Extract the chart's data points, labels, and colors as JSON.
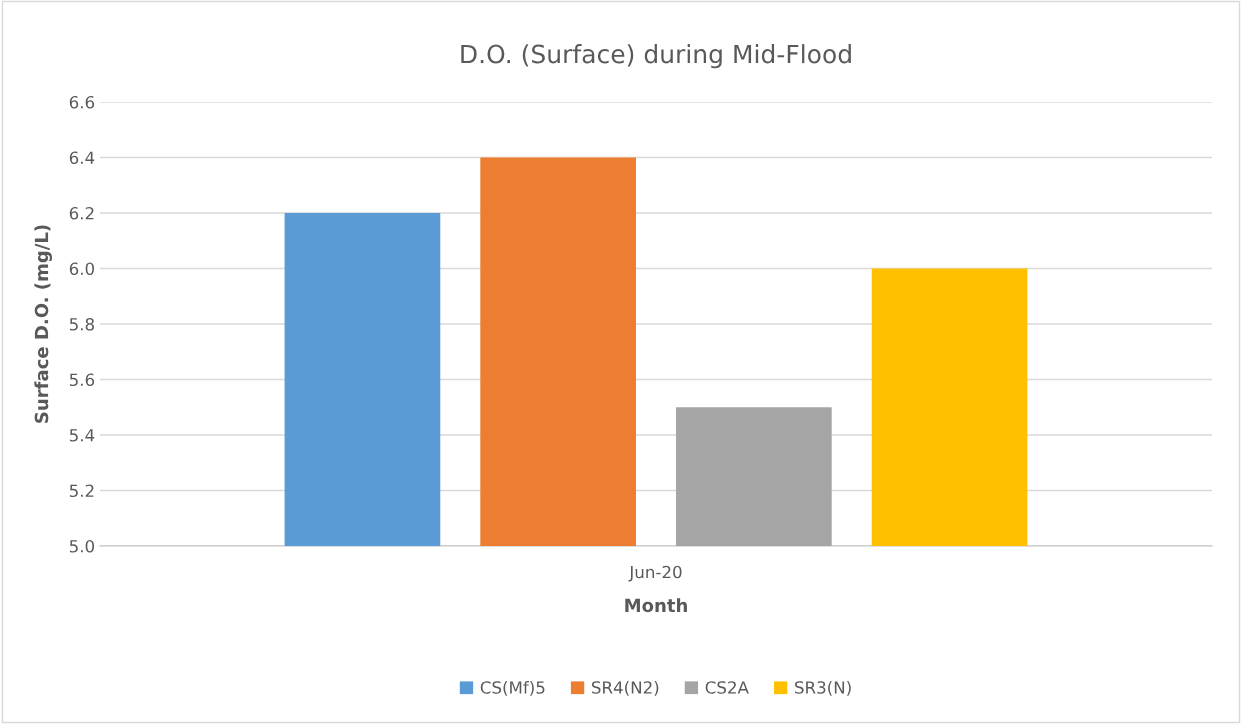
{
  "chart_data": {
    "type": "bar",
    "title": "D.O. (Surface) during Mid-Flood",
    "xlabel": "Month",
    "ylabel": "Surface D.O. (mg/L)",
    "categories": [
      "Jun-20"
    ],
    "series": [
      {
        "name": "CS(Mf)5",
        "color": "#5b9bd5",
        "values": [
          6.2
        ]
      },
      {
        "name": "SR4(N2)",
        "color": "#ed7d31",
        "values": [
          6.4
        ]
      },
      {
        "name": "CS2A",
        "color": "#a5a5a5",
        "values": [
          5.5
        ]
      },
      {
        "name": "SR3(N)",
        "color": "#ffc000",
        "values": [
          6.0
        ]
      }
    ],
    "ylim": [
      5.0,
      6.6
    ],
    "yticks": [
      {
        "value": 5.0,
        "label": "5.0"
      },
      {
        "value": 5.2,
        "label": "5.2"
      },
      {
        "value": 5.4,
        "label": "5.4"
      },
      {
        "value": 5.6,
        "label": "5.6"
      },
      {
        "value": 5.8,
        "label": "5.8"
      },
      {
        "value": 6.0,
        "label": "6.0"
      },
      {
        "value": 6.2,
        "label": "6.2"
      },
      {
        "value": 6.4,
        "label": "6.4"
      },
      {
        "value": 6.6,
        "label": "6.6"
      }
    ],
    "grid": "y",
    "legend": "bottom"
  }
}
